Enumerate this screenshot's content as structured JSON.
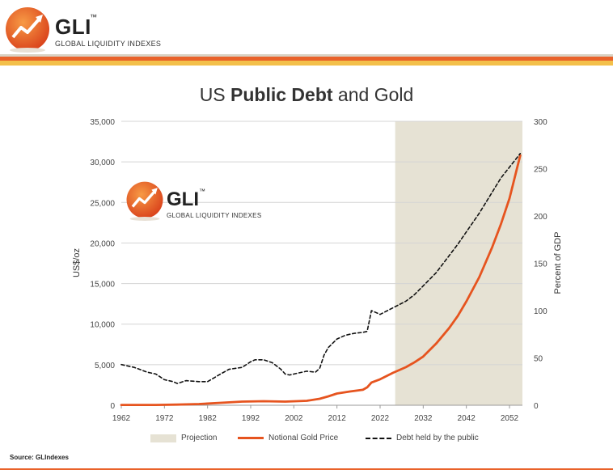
{
  "header": {
    "brand": "GLI",
    "trademark": "™",
    "subtitle": "GLOBAL LIQUIDITY INDEXES"
  },
  "title": {
    "light": "US ",
    "bold": "Public Debt",
    "rest": " and Gold"
  },
  "watermark": {
    "brand": "GLI",
    "trademark": "™",
    "subtitle": "GLOBAL LIQUIDITY INDEXES"
  },
  "source": "Source: GLIndexes",
  "colors": {
    "gold": "#e6541f",
    "debt": "#111111",
    "projection": "#e6e2d4",
    "brand_red": "#e9622a",
    "brand_yellow": "#f3c04a"
  },
  "chart_data": {
    "type": "line",
    "title": "US Public Debt and Gold",
    "xlabel": "",
    "ylabel": "US$/oz",
    "y2label": "Percent of GDP",
    "xlim": [
      1962,
      2055
    ],
    "ylim": [
      0,
      35000
    ],
    "y2lim": [
      0,
      300
    ],
    "x_ticks": [
      "1962",
      "1972",
      "1982",
      "1992",
      "2002",
      "2012",
      "2022",
      "2032",
      "2042",
      "2052"
    ],
    "y_ticks": [
      "0",
      "5,000",
      "10,000",
      "15,000",
      "20,000",
      "25,000",
      "30,000",
      "35,000"
    ],
    "y2_ticks": [
      "0",
      "50",
      "100",
      "150",
      "200",
      "250",
      "300"
    ],
    "grid": true,
    "projection_range": [
      2025.5,
      2055
    ],
    "legend": [
      "Projection",
      "Notional Gold Price",
      "Debt held by the public"
    ],
    "series": [
      {
        "name": "Notional Gold Price",
        "axis": "left",
        "style": "solid",
        "x": [
          1962,
          1970,
          1975,
          1980,
          1985,
          1990,
          1995,
          2000,
          2005,
          2008,
          2010,
          2012,
          2015,
          2018,
          2019,
          2020,
          2022,
          2025,
          2028,
          2030,
          2032,
          2035,
          2038,
          2040,
          2042,
          2045,
          2048,
          2050,
          2052,
          2054.5
        ],
        "y": [
          35,
          40,
          80,
          150,
          300,
          450,
          500,
          450,
          550,
          800,
          1100,
          1450,
          1700,
          1900,
          2200,
          2800,
          3200,
          4000,
          4700,
          5300,
          6000,
          7600,
          9500,
          11000,
          12800,
          15800,
          19500,
          22300,
          25500,
          30800
        ]
      },
      {
        "name": "Debt held by the public",
        "axis": "right",
        "style": "dashed",
        "x": [
          1962,
          1965,
          1968,
          1970,
          1972,
          1974,
          1975,
          1977,
          1980,
          1982,
          1985,
          1987,
          1990,
          1992,
          1993,
          1995,
          1997,
          1999,
          2000,
          2001,
          2003,
          2005,
          2007,
          2008,
          2009,
          2010,
          2012,
          2014,
          2016,
          2018,
          2019,
          2020,
          2021,
          2022,
          2025,
          2028,
          2030,
          2035,
          2040,
          2045,
          2050,
          2054.5
        ],
        "y": [
          43,
          40,
          35,
          33,
          27,
          25,
          23,
          26,
          25,
          25,
          33,
          38,
          40,
          46,
          48,
          48,
          45,
          38,
          33,
          32,
          34,
          36,
          35,
          39,
          53,
          61,
          70,
          74,
          76,
          77,
          78,
          100,
          98,
          96,
          103,
          110,
          117,
          140,
          170,
          203,
          240,
          266
        ]
      }
    ]
  }
}
